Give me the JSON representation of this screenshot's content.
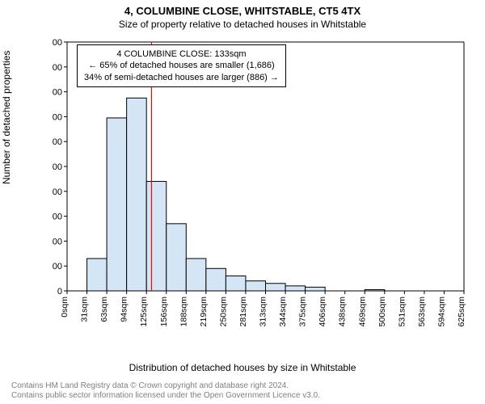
{
  "title": "4, COLUMBINE CLOSE, WHITSTABLE, CT5 4TX",
  "subtitle": "Size of property relative to detached houses in Whitstable",
  "annotation": {
    "line1": "4 COLUMBINE CLOSE: 133sqm",
    "line2": "← 65% of detached houses are smaller (1,686)",
    "line3": "34% of semi-detached houses are larger (886) →"
  },
  "ylabel": "Number of detached properties",
  "xlabel": "Distribution of detached houses by size in Whitstable",
  "footer_line1": "Contains HM Land Registry data © Crown copyright and database right 2024.",
  "footer_line2": "Contains public sector information licensed under the Open Government Licence v3.0.",
  "chart": {
    "type": "histogram",
    "background_color": "#ffffff",
    "bar_fill": "#d4e5f6",
    "bar_stroke": "#000000",
    "marker_color": "#ff0000",
    "axis_color": "#000000",
    "ylim": [
      0,
      1000
    ],
    "ytick_step": 100,
    "xticks": [
      "0sqm",
      "31sqm",
      "63sqm",
      "94sqm",
      "125sqm",
      "156sqm",
      "188sqm",
      "219sqm",
      "250sqm",
      "281sqm",
      "313sqm",
      "344sqm",
      "375sqm",
      "406sqm",
      "438sqm",
      "469sqm",
      "500sqm",
      "531sqm",
      "563sqm",
      "594sqm",
      "625sqm"
    ],
    "x_max": 625,
    "bin_width": 31.25,
    "values": [
      0,
      130,
      695,
      775,
      440,
      270,
      130,
      90,
      60,
      40,
      30,
      20,
      15,
      0,
      0,
      5,
      0,
      0,
      0,
      0
    ],
    "marker_x": 133,
    "title_fontsize": 13,
    "subtitle_fontsize": 12,
    "label_fontsize": 12,
    "tick_fontsize": 11,
    "footer_color": "#808080"
  }
}
